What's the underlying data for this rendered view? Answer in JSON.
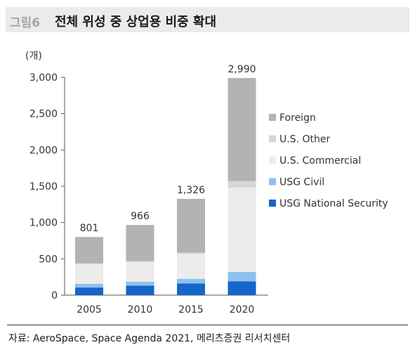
{
  "figure": {
    "label": "그림6",
    "title": "전체 위성 중 상업용 비중 확대"
  },
  "source": "자료: AeroSpace, Space Agenda 2021, 메리츠증권 리서치센터",
  "colors": {
    "Foreign": "#b3b3b3",
    "U.S. Other": "#d6d6d6",
    "U.S. Commercial": "#ececec",
    "USG Civil": "#8fc0ee",
    "USG National Security": "#1466c8"
  },
  "chart_data": {
    "type": "bar",
    "stacked": true,
    "unit_label": "(개)",
    "categories": [
      "2005",
      "2010",
      "2015",
      "2020"
    ],
    "series": [
      {
        "name": "USG National Security",
        "values": [
          105,
          130,
          160,
          190
        ]
      },
      {
        "name": "USG Civil",
        "values": [
          50,
          55,
          65,
          130
        ]
      },
      {
        "name": "U.S. Commercial",
        "values": [
          270,
          270,
          345,
          1160
        ]
      },
      {
        "name": "U.S. Other",
        "values": [
          15,
          15,
          15,
          90
        ]
      },
      {
        "name": "Foreign",
        "values": [
          361,
          496,
          741,
          1420
        ]
      }
    ],
    "totals": [
      "801",
      "966",
      "1,326",
      "2,990"
    ],
    "yticks": [
      "0",
      "500",
      "1,000",
      "1,500",
      "2,000",
      "2,500",
      "3,000"
    ],
    "ylim": [
      0,
      3000
    ],
    "legend_order": [
      "Foreign",
      "U.S. Other",
      "U.S. Commercial",
      "USG Civil",
      "USG National Security"
    ],
    "legend_position": "right",
    "grid": false
  }
}
